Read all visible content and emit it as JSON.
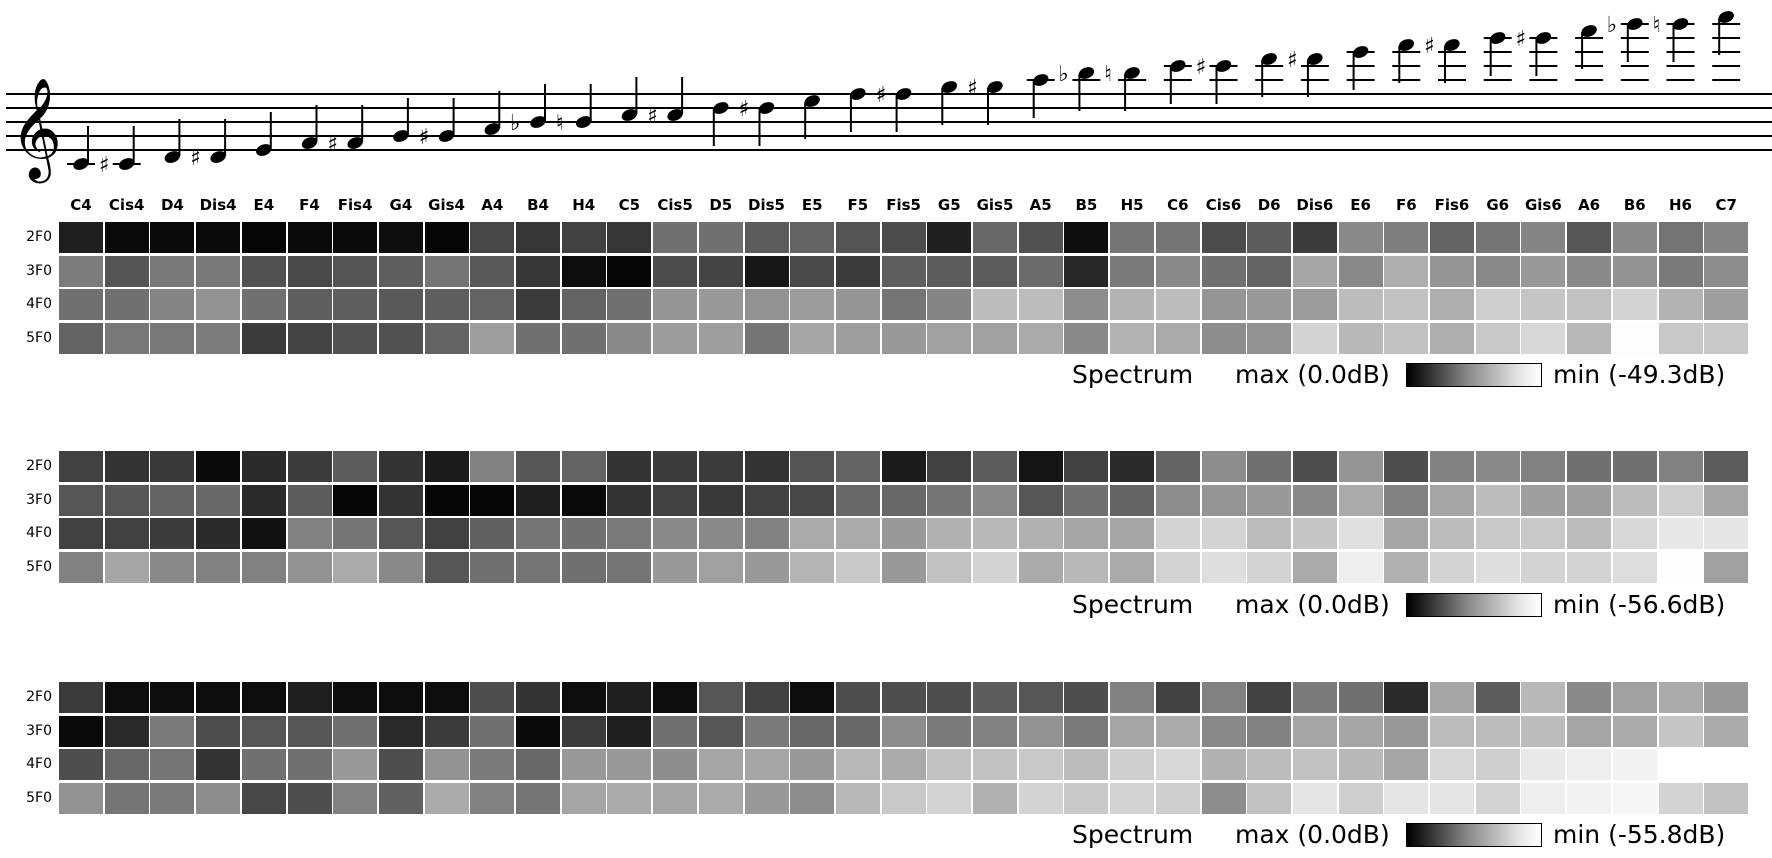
{
  "notes": [
    "C4",
    "Cis4",
    "D4",
    "Dis4",
    "E4",
    "F4",
    "Fis4",
    "G4",
    "Gis4",
    "A4",
    "B4",
    "H4",
    "C5",
    "Cis5",
    "D5",
    "Dis5",
    "E5",
    "F5",
    "Fis5",
    "G5",
    "Gis5",
    "A5",
    "B5",
    "H5",
    "C6",
    "Cis6",
    "D6",
    "Dis6",
    "E6",
    "F6",
    "Fis6",
    "G6",
    "Gis6",
    "A6",
    "B6",
    "H6",
    "C7"
  ],
  "accidentals": [
    "",
    "#",
    "",
    "#",
    "",
    "",
    "#",
    "",
    "#",
    "",
    "b",
    "n",
    "",
    "#",
    "",
    "#",
    "",
    "",
    "#",
    "",
    "#",
    "",
    "b",
    "n",
    "",
    "#",
    "",
    "#",
    "",
    "",
    "#",
    "",
    "#",
    "",
    "b",
    "n",
    ""
  ],
  "chart_data": [
    {
      "type": "heatmap",
      "rows": [
        "2F0",
        "3F0",
        "4F0",
        "5F0"
      ],
      "legend": {
        "label": "Spectrum",
        "max_text": "max (0.0dB)",
        "min_text": "min (-49.3dB)"
      },
      "values": [
        [
          -8,
          -2,
          -2,
          -2,
          -1,
          -2,
          -2,
          -3,
          -1,
          -22,
          -16,
          -20,
          -16,
          -38,
          -38,
          -30,
          -33,
          -27,
          -24,
          -8,
          -35,
          -26,
          -3,
          -40,
          -40,
          -24,
          -30,
          -18,
          -48,
          -44,
          -33,
          -40,
          -46,
          -28,
          -48,
          -39,
          -46
        ],
        [
          -43,
          -27,
          -41,
          -41,
          -26,
          -23,
          -27,
          -31,
          -40,
          -29,
          -16,
          -3,
          -1,
          -24,
          -21,
          -6,
          -23,
          -18,
          -31,
          -30,
          -30,
          -36,
          -11,
          -42,
          -48,
          -38,
          -33,
          -60,
          -48,
          -64,
          -53,
          -48,
          -55,
          -48,
          -52,
          -42,
          -50
        ],
        [
          -38,
          -38,
          -46,
          -52,
          -38,
          -31,
          -31,
          -29,
          -31,
          -33,
          -18,
          -33,
          -38,
          -53,
          -55,
          -52,
          -56,
          -53,
          -40,
          -46,
          -70,
          -70,
          -50,
          -66,
          -70,
          -53,
          -55,
          -56,
          -70,
          -72,
          -64,
          -78,
          -74,
          -72,
          -80,
          -66,
          -57
        ],
        [
          -33,
          -41,
          -41,
          -43,
          -18,
          -21,
          -26,
          -26,
          -33,
          -57,
          -38,
          -38,
          -48,
          -56,
          -57,
          -40,
          -60,
          -57,
          -55,
          -58,
          -58,
          -62,
          -48,
          -66,
          -62,
          -50,
          -52,
          -80,
          -68,
          -72,
          -64,
          -75,
          -82,
          -68,
          -99,
          -75,
          -75
        ]
      ]
    },
    {
      "type": "heatmap",
      "rows": [
        "2F0",
        "3F0",
        "4F0",
        "5F0"
      ],
      "legend": {
        "label": "Spectrum",
        "max_text": "max (0.0dB)",
        "min_text": "min (-56.6dB)"
      },
      "values": [
        [
          -20,
          -15,
          -17,
          -2,
          -12,
          -18,
          -30,
          -15,
          -7,
          -45,
          -28,
          -33,
          -15,
          -18,
          -18,
          -15,
          -27,
          -33,
          -7,
          -20,
          -30,
          -5,
          -20,
          -12,
          -33,
          -50,
          -38,
          -25,
          -53,
          -25,
          -45,
          -48,
          -45,
          -38,
          -38,
          -45,
          -30
        ],
        [
          -28,
          -28,
          -33,
          -35,
          -12,
          -30,
          -1,
          -15,
          -1,
          -1,
          -8,
          -2,
          -15,
          -20,
          -17,
          -20,
          -22,
          -35,
          -35,
          -40,
          -48,
          -28,
          -38,
          -33,
          -50,
          -53,
          -55,
          -48,
          -62,
          -45,
          -60,
          -70,
          -57,
          -57,
          -70,
          -78,
          -60
        ],
        [
          -20,
          -20,
          -18,
          -12,
          -4,
          -45,
          -40,
          -28,
          -20,
          -32,
          -40,
          -38,
          -42,
          -48,
          -48,
          -45,
          -62,
          -62,
          -55,
          -65,
          -68,
          -65,
          -60,
          -60,
          -80,
          -80,
          -70,
          -74,
          -86,
          -60,
          -70,
          -75,
          -75,
          -70,
          -82,
          -89,
          -88
        ],
        [
          -45,
          -60,
          -48,
          -45,
          -45,
          -52,
          -62,
          -48,
          -28,
          -38,
          -40,
          -38,
          -40,
          -55,
          -58,
          -55,
          -67,
          -75,
          -55,
          -72,
          -80,
          -62,
          -68,
          -62,
          -80,
          -85,
          -80,
          -62,
          -92,
          -65,
          -80,
          -85,
          -80,
          -80,
          -84,
          -99,
          -58
        ]
      ]
    },
    {
      "type": "heatmap",
      "rows": [
        "2F0",
        "3F0",
        "4F0",
        "5F0"
      ],
      "legend": {
        "label": "Spectrum",
        "max_text": "max (0.0dB)",
        "min_text": "min (-55.8dB)"
      },
      "values": [
        [
          -18,
          -3,
          -3,
          -3,
          -3,
          -8,
          -3,
          -3,
          -3,
          -25,
          -15,
          -3,
          -8,
          -3,
          -28,
          -20,
          -3,
          -25,
          -25,
          -25,
          -30,
          -28,
          -25,
          -45,
          -20,
          -45,
          -20,
          -42,
          -38,
          -12,
          -60,
          -30,
          -68,
          -48,
          -58,
          -62,
          -55
        ],
        [
          -2,
          -12,
          -42,
          -25,
          -28,
          -28,
          -38,
          -12,
          -18,
          -38,
          -2,
          -18,
          -8,
          -38,
          -28,
          -42,
          -35,
          -35,
          -50,
          -42,
          -45,
          -52,
          -42,
          -60,
          -62,
          -48,
          -45,
          -60,
          -60,
          -55,
          -70,
          -70,
          -70,
          -60,
          -62,
          -74,
          -62
        ],
        [
          -25,
          -35,
          -40,
          -15,
          -38,
          -38,
          -55,
          -25,
          -52,
          -42,
          -35,
          -55,
          -55,
          -50,
          -60,
          -60,
          -55,
          -68,
          -62,
          -72,
          -72,
          -75,
          -70,
          -78,
          -82,
          -65,
          -70,
          -72,
          -68,
          -60,
          -82,
          -78,
          -90,
          -92,
          -94,
          -100,
          -100
        ],
        [
          -52,
          -40,
          -42,
          -50,
          -22,
          -25,
          -45,
          -32,
          -62,
          -45,
          -40,
          -60,
          -62,
          -60,
          -62,
          -55,
          -50,
          -68,
          -75,
          -80,
          -65,
          -80,
          -75,
          -80,
          -78,
          -50,
          -72,
          -88,
          -78,
          -88,
          -88,
          -80,
          -92,
          -94,
          -96,
          -80,
          -72
        ]
      ]
    }
  ]
}
